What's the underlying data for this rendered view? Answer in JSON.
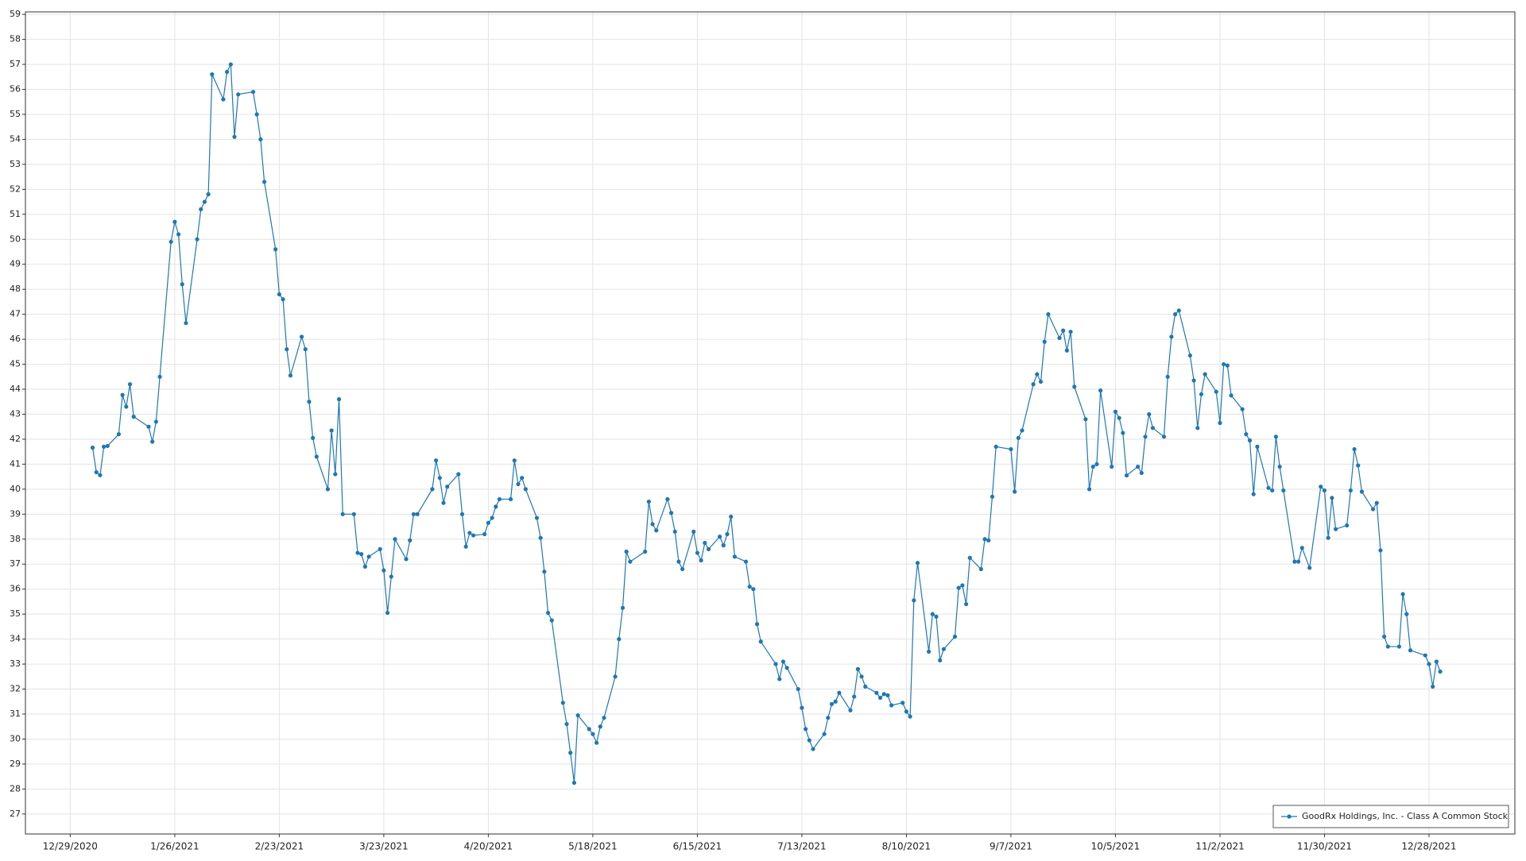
{
  "chart_data": {
    "type": "line",
    "x": [
      "1/4/2021",
      "1/5/2021",
      "1/6/2021",
      "1/7/2021",
      "1/8/2021",
      "1/11/2021",
      "1/12/2021",
      "1/13/2021",
      "1/14/2021",
      "1/15/2021",
      "1/19/2021",
      "1/20/2021",
      "1/21/2021",
      "1/22/2021",
      "1/25/2021",
      "1/26/2021",
      "1/27/2021",
      "1/28/2021",
      "1/29/2021",
      "2/1/2021",
      "2/2/2021",
      "2/3/2021",
      "2/4/2021",
      "2/5/2021",
      "2/8/2021",
      "2/9/2021",
      "2/10/2021",
      "2/11/2021",
      "2/12/2021",
      "2/16/2021",
      "2/17/2021",
      "2/18/2021",
      "2/19/2021",
      "2/22/2021",
      "2/23/2021",
      "2/24/2021",
      "2/25/2021",
      "2/26/2021",
      "3/1/2021",
      "3/2/2021",
      "3/3/2021",
      "3/4/2021",
      "3/5/2021",
      "3/8/2021",
      "3/9/2021",
      "3/10/2021",
      "3/11/2021",
      "3/12/2021",
      "3/15/2021",
      "3/16/2021",
      "3/17/2021",
      "3/18/2021",
      "3/19/2021",
      "3/22/2021",
      "3/23/2021",
      "3/24/2021",
      "3/25/2021",
      "3/26/2021",
      "3/29/2021",
      "3/30/2021",
      "3/31/2021",
      "4/1/2021",
      "4/5/2021",
      "4/6/2021",
      "4/7/2021",
      "4/8/2021",
      "4/9/2021",
      "4/12/2021",
      "4/13/2021",
      "4/14/2021",
      "4/15/2021",
      "4/16/2021",
      "4/19/2021",
      "4/20/2021",
      "4/21/2021",
      "4/22/2021",
      "4/23/2021",
      "4/26/2021",
      "4/27/2021",
      "4/28/2021",
      "4/29/2021",
      "4/30/2021",
      "5/3/2021",
      "5/4/2021",
      "5/5/2021",
      "5/6/2021",
      "5/7/2021",
      "5/10/2021",
      "5/11/2021",
      "5/12/2021",
      "5/13/2021",
      "5/14/2021",
      "5/17/2021",
      "5/18/2021",
      "5/19/2021",
      "5/20/2021",
      "5/21/2021",
      "5/24/2021",
      "5/25/2021",
      "5/26/2021",
      "5/27/2021",
      "5/28/2021",
      "6/1/2021",
      "6/2/2021",
      "6/3/2021",
      "6/4/2021",
      "6/7/2021",
      "6/8/2021",
      "6/9/2021",
      "6/10/2021",
      "6/11/2021",
      "6/14/2021",
      "6/15/2021",
      "6/16/2021",
      "6/17/2021",
      "6/18/2021",
      "6/21/2021",
      "6/22/2021",
      "6/23/2021",
      "6/24/2021",
      "6/25/2021",
      "6/28/2021",
      "6/29/2021",
      "6/30/2021",
      "7/1/2021",
      "7/2/2021",
      "7/6/2021",
      "7/7/2021",
      "7/8/2021",
      "7/9/2021",
      "7/12/2021",
      "7/13/2021",
      "7/14/2021",
      "7/15/2021",
      "7/16/2021",
      "7/19/2021",
      "7/20/2021",
      "7/21/2021",
      "7/22/2021",
      "7/23/2021",
      "7/26/2021",
      "7/27/2021",
      "7/28/2021",
      "7/29/2021",
      "7/30/2021",
      "8/2/2021",
      "8/3/2021",
      "8/4/2021",
      "8/5/2021",
      "8/6/2021",
      "8/9/2021",
      "8/10/2021",
      "8/11/2021",
      "8/12/2021",
      "8/13/2021",
      "8/16/2021",
      "8/17/2021",
      "8/18/2021",
      "8/19/2021",
      "8/20/2021",
      "8/23/2021",
      "8/24/2021",
      "8/25/2021",
      "8/26/2021",
      "8/27/2021",
      "8/30/2021",
      "8/31/2021",
      "9/1/2021",
      "9/2/2021",
      "9/3/2021",
      "9/7/2021",
      "9/8/2021",
      "9/9/2021",
      "9/10/2021",
      "9/13/2021",
      "9/14/2021",
      "9/15/2021",
      "9/16/2021",
      "9/17/2021",
      "9/20/2021",
      "9/21/2021",
      "9/22/2021",
      "9/23/2021",
      "9/24/2021",
      "9/27/2021",
      "9/28/2021",
      "9/29/2021",
      "9/30/2021",
      "10/1/2021",
      "10/4/2021",
      "10/5/2021",
      "10/6/2021",
      "10/7/2021",
      "10/8/2021",
      "10/11/2021",
      "10/12/2021",
      "10/13/2021",
      "10/14/2021",
      "10/15/2021",
      "10/18/2021",
      "10/19/2021",
      "10/20/2021",
      "10/21/2021",
      "10/22/2021",
      "10/25/2021",
      "10/26/2021",
      "10/27/2021",
      "10/28/2021",
      "10/29/2021",
      "11/1/2021",
      "11/2/2021",
      "11/3/2021",
      "11/4/2021",
      "11/5/2021",
      "11/8/2021",
      "11/9/2021",
      "11/10/2021",
      "11/11/2021",
      "11/12/2021",
      "11/15/2021",
      "11/16/2021",
      "11/17/2021",
      "11/18/2021",
      "11/19/2021",
      "11/22/2021",
      "11/23/2021",
      "11/24/2021",
      "11/26/2021",
      "11/29/2021",
      "11/30/2021",
      "12/1/2021",
      "12/2/2021",
      "12/3/2021",
      "12/6/2021",
      "12/7/2021",
      "12/8/2021",
      "12/9/2021",
      "12/10/2021",
      "12/13/2021",
      "12/14/2021",
      "12/15/2021",
      "12/16/2021",
      "12/17/2021",
      "12/20/2021",
      "12/21/2021",
      "12/22/2021",
      "12/23/2021",
      "12/27/2021",
      "12/28/2021",
      "12/29/2021",
      "12/30/2021",
      "12/31/2021"
    ],
    "series": [
      {
        "name": "GoodRx Holdings, Inc. - Class A Common Stock",
        "color": "#1f77b4",
        "values": [
          41.66,
          40.68,
          40.56,
          41.7,
          41.73,
          42.2,
          43.77,
          43.3,
          44.2,
          42.9,
          42.5,
          41.9,
          42.7,
          44.5,
          49.9,
          50.7,
          50.2,
          48.2,
          46.65,
          50.0,
          51.2,
          51.5,
          51.8,
          56.6,
          55.6,
          56.7,
          57.0,
          54.1,
          55.8,
          55.9,
          55.0,
          54.0,
          52.3,
          49.6,
          47.8,
          47.6,
          45.6,
          44.55,
          46.1,
          45.6,
          43.5,
          42.05,
          41.3,
          40.0,
          42.35,
          40.6,
          43.6,
          39.0,
          39.0,
          37.45,
          37.4,
          36.9,
          37.3,
          37.6,
          36.75,
          35.05,
          36.5,
          38.0,
          37.2,
          37.95,
          39.0,
          39.0,
          40.0,
          41.15,
          40.45,
          39.45,
          40.1,
          40.6,
          39.0,
          37.7,
          38.25,
          38.15,
          38.2,
          38.65,
          38.85,
          39.3,
          39.6,
          39.6,
          41.15,
          40.2,
          40.45,
          40.0,
          38.85,
          38.05,
          36.7,
          35.05,
          34.75,
          31.45,
          30.6,
          29.45,
          28.25,
          30.95,
          30.4,
          30.2,
          29.85,
          30.5,
          30.85,
          32.5,
          34.0,
          35.25,
          37.5,
          37.1,
          37.5,
          39.5,
          38.6,
          38.35,
          39.6,
          39.05,
          38.3,
          37.1,
          36.8,
          38.3,
          37.45,
          37.15,
          37.85,
          37.6,
          38.1,
          37.75,
          38.2,
          38.9,
          37.3,
          37.1,
          36.1,
          36.0,
          34.6,
          33.9,
          33.0,
          32.4,
          33.1,
          32.85,
          32.0,
          31.25,
          30.4,
          29.95,
          29.6,
          30.2,
          30.85,
          31.4,
          31.5,
          31.85,
          31.15,
          31.7,
          32.8,
          32.5,
          32.1,
          31.85,
          31.65,
          31.8,
          31.75,
          31.35,
          31.45,
          31.1,
          30.9,
          35.55,
          37.05,
          33.5,
          35.0,
          34.9,
          33.15,
          33.6,
          34.1,
          36.05,
          36.15,
          35.4,
          37.25,
          36.8,
          38.0,
          37.95,
          39.7,
          41.7,
          41.6,
          39.9,
          42.05,
          42.35,
          44.2,
          44.6,
          44.3,
          45.9,
          47.0,
          46.05,
          46.35,
          45.55,
          46.3,
          44.1,
          42.8,
          40.0,
          40.9,
          41.0,
          43.95,
          40.9,
          43.1,
          42.85,
          42.25,
          40.55,
          40.9,
          40.65,
          42.1,
          43.0,
          42.45,
          42.1,
          44.5,
          46.1,
          47.0,
          47.15,
          45.35,
          44.35,
          42.45,
          43.8,
          44.6,
          43.9,
          42.65,
          45.0,
          44.95,
          43.75,
          43.2,
          42.2,
          41.95,
          39.8,
          41.7,
          40.05,
          39.95,
          42.1,
          40.9,
          39.95,
          37.1,
          37.1,
          37.65,
          36.85,
          40.1,
          39.95,
          38.05,
          39.65,
          38.4,
          38.55,
          39.95,
          41.6,
          40.95,
          39.9,
          39.2,
          39.45,
          37.55,
          34.1,
          33.7,
          33.7,
          35.8,
          35.0,
          33.55,
          33.35,
          33.0,
          32.1,
          33.1,
          32.7
        ]
      }
    ],
    "xlim": [
      "12/17/2020",
      "1/20/2022"
    ],
    "xticks": [
      "12/29/2020",
      "1/26/2021",
      "2/23/2021",
      "3/23/2021",
      "4/20/2021",
      "5/18/2021",
      "6/15/2021",
      "7/13/2021",
      "8/10/2021",
      "9/7/2021",
      "10/5/2021",
      "11/2/2021",
      "11/30/2021",
      "12/28/2021"
    ],
    "ylim": [
      26.2,
      59.1
    ],
    "yticks": [
      27,
      28,
      29,
      30,
      31,
      32,
      33,
      34,
      35,
      36,
      37,
      38,
      39,
      40,
      41,
      42,
      43,
      44,
      45,
      46,
      47,
      48,
      49,
      50,
      51,
      52,
      53,
      54,
      55,
      56,
      57,
      58,
      59
    ],
    "grid": true,
    "legend": "lower right"
  }
}
